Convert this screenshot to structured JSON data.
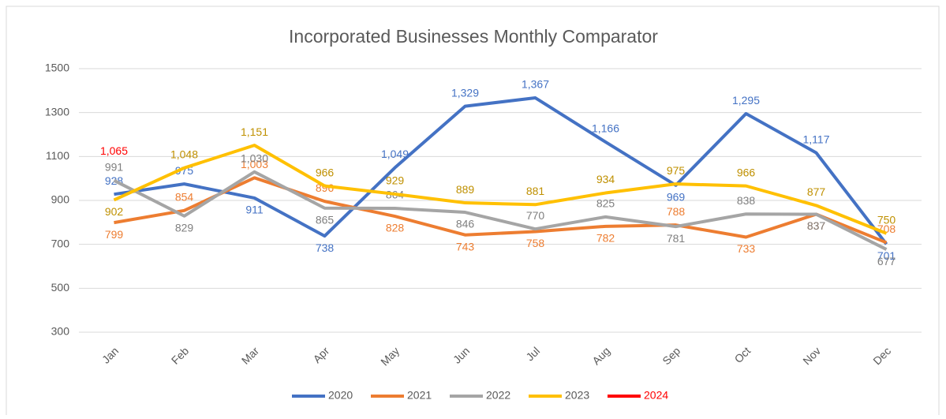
{
  "chart_data": {
    "type": "line",
    "title": "Incorporated Businesses Monthly Comparator",
    "categories": [
      "Jan",
      "Feb",
      "Mar",
      "Apr",
      "May",
      "Jun",
      "Jul",
      "Aug",
      "Sep",
      "Oct",
      "Nov",
      "Dec"
    ],
    "ylim": [
      300,
      1500
    ],
    "yticks": [
      300,
      500,
      700,
      900,
      1100,
      1300,
      1500
    ],
    "grid": true,
    "legend": "bottom",
    "series": [
      {
        "name": "2020",
        "color": "#4472c4",
        "label_color": "#4472c4",
        "values": [
          928,
          975,
          911,
          738,
          1049,
          1329,
          1367,
          1166,
          969,
          1295,
          1117,
          701
        ],
        "value_labels": [
          "928",
          "975",
          "911",
          "738",
          "1,049",
          "1,329",
          "1,367",
          "1,166",
          "969",
          "1,295",
          "1,117",
          "701"
        ]
      },
      {
        "name": "2021",
        "color": "#ed7d31",
        "label_color": "#ed7d31",
        "values": [
          799,
          854,
          1003,
          896,
          828,
          743,
          758,
          782,
          788,
          733,
          837,
          708
        ],
        "value_labels": [
          "799",
          "854",
          "1,003",
          "896",
          "828",
          "743",
          "758",
          "782",
          "788",
          "733",
          "837",
          "708"
        ]
      },
      {
        "name": "2022",
        "color": "#a5a5a5",
        "label_color": "#7f7f7f",
        "values": [
          991,
          829,
          1030,
          865,
          864,
          846,
          770,
          825,
          781,
          838,
          837,
          677
        ],
        "value_labels": [
          "991",
          "829",
          "1,030",
          "865",
          "864",
          "846",
          "770",
          "825",
          "781",
          "838",
          "837",
          "677"
        ]
      },
      {
        "name": "2023",
        "color": "#ffc000",
        "label_color": "#bf9000",
        "values": [
          902,
          1048,
          1151,
          966,
          929,
          889,
          881,
          934,
          975,
          966,
          877,
          750
        ],
        "value_labels": [
          "902",
          "1,048",
          "1,151",
          "966",
          "929",
          "889",
          "881",
          "934",
          "975",
          "966",
          "877",
          "750"
        ]
      },
      {
        "name": "2024",
        "color": "#ff0000",
        "label_color": "#ff0000",
        "values": [
          1065,
          null,
          null,
          null,
          null,
          null,
          null,
          null,
          null,
          null,
          null,
          null
        ],
        "value_labels": [
          "1,065",
          null,
          null,
          null,
          null,
          null,
          null,
          null,
          null,
          null,
          null,
          null
        ]
      }
    ]
  }
}
